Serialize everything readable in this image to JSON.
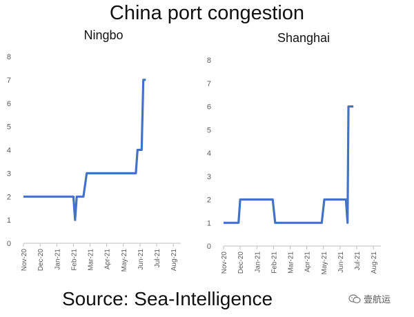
{
  "title": "China port congestion",
  "source": "Source: Sea-Intelligence",
  "watermark": {
    "text": "壹航运",
    "icon": "wechat-icon"
  },
  "colors": {
    "line": "#4472C4",
    "axis": "#bfbfbf",
    "text": "#595959"
  },
  "chart_data": [
    {
      "type": "line",
      "title": "Ningbo",
      "xlabel": "",
      "ylabel": "",
      "ylim": [
        0,
        8
      ],
      "yticks": [
        "0",
        "1",
        "2",
        "3",
        "4",
        "5",
        "6",
        "7",
        "8"
      ],
      "xticks": [
        "Nov-20",
        "Dec-20",
        "Jan-21",
        "Feb-21",
        "Mar-21",
        "Apr-21",
        "May-21",
        "Jun-21",
        "Jul-21",
        "Aug-21"
      ],
      "grid": false,
      "legend": "none",
      "series": [
        {
          "x": [
            0,
            3.0,
            3.1,
            3.2,
            3.6,
            3.8,
            6.75,
            6.85,
            7.1,
            7.2,
            7.35
          ],
          "y": [
            2,
            2,
            1,
            2,
            2,
            3,
            3,
            4,
            4,
            7,
            7
          ]
        }
      ]
    },
    {
      "type": "line",
      "title": "Shanghai",
      "xlabel": "",
      "ylabel": "",
      "ylim": [
        0,
        8
      ],
      "yticks": [
        "0",
        "1",
        "2",
        "3",
        "4",
        "5",
        "6",
        "7",
        "8"
      ],
      "xticks": [
        "Nov-20",
        "Dec-20",
        "Jan-21",
        "Feb-21",
        "Mar-21",
        "Apr-21",
        "May-21",
        "Jun-21",
        "Jul-21",
        "Aug-21"
      ],
      "grid": false,
      "legend": "none",
      "series": [
        {
          "x": [
            0,
            0.9,
            1.0,
            2.95,
            3.1,
            5.9,
            6.05,
            7.35,
            7.45,
            7.5,
            7.8
          ],
          "y": [
            1,
            1,
            2,
            2,
            1,
            1,
            2,
            2,
            1,
            6,
            6
          ]
        }
      ]
    }
  ]
}
